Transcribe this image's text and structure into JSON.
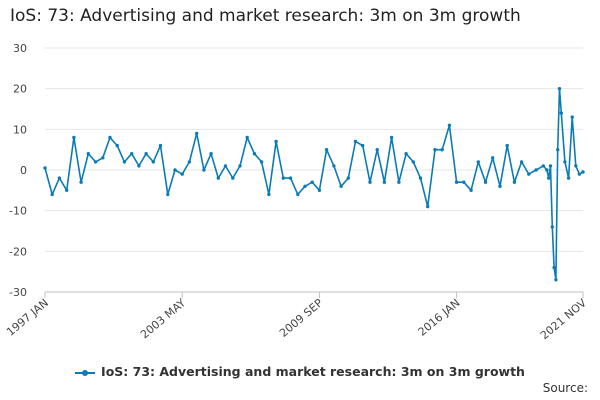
{
  "chart_data": {
    "type": "line",
    "title": "IoS: 73: Advertising and market research: 3m on 3m growth",
    "xlabel": "",
    "ylabel": "",
    "ylim": [
      -30,
      30
    ],
    "yticks": [
      30,
      20,
      10,
      0,
      -10,
      -20,
      -30
    ],
    "x_range": [
      "1997 JAN",
      "2021 NOV"
    ],
    "xticks": [
      "1997 JAN",
      "2003 MAY",
      "2009 SEP",
      "2016 JAN",
      "2021 NOV"
    ],
    "grid": true,
    "legend_position": "bottom",
    "line_color": "#0b7bb7",
    "series": [
      {
        "name": "IoS: 73: Advertising and market research: 3m on 3m growth",
        "x": [
          "1997 JAN",
          "1997 MAY",
          "1997 SEP",
          "1998 JAN",
          "1998 MAY",
          "1998 SEP",
          "1999 JAN",
          "1999 MAY",
          "1999 SEP",
          "2000 JAN",
          "2000 MAY",
          "2000 SEP",
          "2001 JAN",
          "2001 MAY",
          "2001 SEP",
          "2002 JAN",
          "2002 MAY",
          "2002 SEP",
          "2003 JAN",
          "2003 MAY",
          "2003 SEP",
          "2004 JAN",
          "2004 MAY",
          "2004 SEP",
          "2005 JAN",
          "2005 MAY",
          "2005 SEP",
          "2006 JAN",
          "2006 MAY",
          "2006 SEP",
          "2007 JAN",
          "2007 MAY",
          "2007 SEP",
          "2008 JAN",
          "2008 MAY",
          "2008 SEP",
          "2009 JAN",
          "2009 MAY",
          "2009 SEP",
          "2010 JAN",
          "2010 MAY",
          "2010 SEP",
          "2011 JAN",
          "2011 MAY",
          "2011 SEP",
          "2012 JAN",
          "2012 MAY",
          "2012 SEP",
          "2013 JAN",
          "2013 MAY",
          "2013 SEP",
          "2014 JAN",
          "2014 MAY",
          "2014 SEP",
          "2015 JAN",
          "2015 MAY",
          "2015 SEP",
          "2016 JAN",
          "2016 MAY",
          "2016 SEP",
          "2017 JAN",
          "2017 MAY",
          "2017 SEP",
          "2018 JAN",
          "2018 MAY",
          "2018 SEP",
          "2019 JAN",
          "2019 MAY",
          "2019 SEP",
          "2020 JAN",
          "2020 MAR",
          "2020 APR",
          "2020 MAY",
          "2020 JUN",
          "2020 JUL",
          "2020 AUG",
          "2020 SEP",
          "2020 OCT",
          "2020 NOV",
          "2021 JAN",
          "2021 MAR",
          "2021 MAY",
          "2021 JUL",
          "2021 SEP",
          "2021 NOV"
        ],
        "values": [
          0.5,
          -6,
          -2,
          -5,
          8,
          -3,
          4,
          2,
          3,
          8,
          6,
          2,
          4,
          1,
          4,
          2,
          6,
          -6,
          0,
          -1,
          2,
          9,
          0,
          4,
          -2,
          1,
          -2,
          1,
          8,
          4,
          2,
          -6,
          7,
          -2,
          -2,
          -6,
          -4,
          -3,
          -5,
          5,
          1,
          -4,
          -2,
          7,
          6,
          -3,
          5,
          -3,
          8,
          -3,
          4,
          2,
          -2,
          -9,
          5,
          5,
          11,
          -3,
          -3,
          -5,
          2,
          -3,
          3,
          -4,
          6,
          -3,
          2,
          -1,
          0,
          1,
          0,
          -2,
          1,
          -14,
          -24,
          -27,
          5,
          20,
          14,
          2,
          -2,
          13,
          1,
          -1,
          -0.5
        ]
      }
    ]
  },
  "source_label": "Source:"
}
